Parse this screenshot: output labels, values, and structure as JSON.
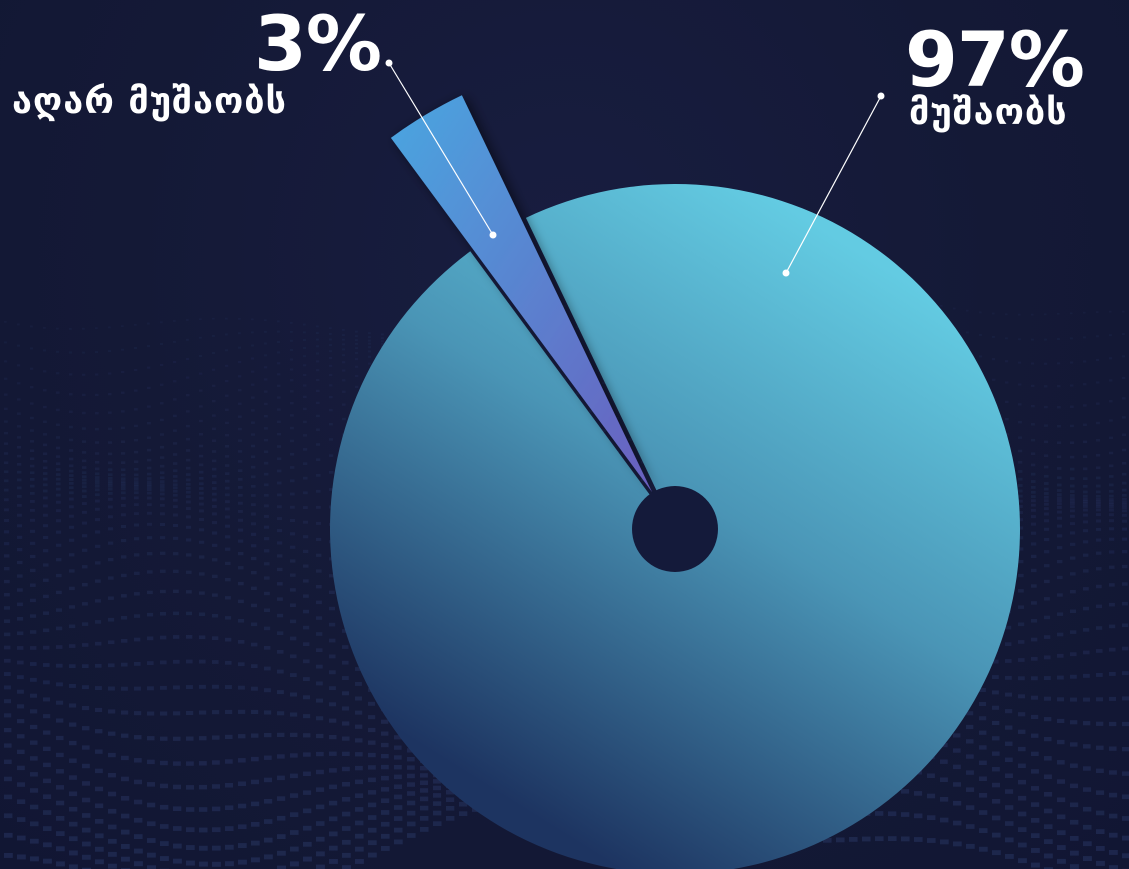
{
  "chart_data": {
    "type": "pie",
    "slices": [
      {
        "label": "მუშაობს",
        "value": 97,
        "value_text": "97%",
        "color": "#5fc7de"
      },
      {
        "label": "აღარ მუშაობს",
        "value": 3,
        "value_text": "3%",
        "color": "#5a7fd0"
      }
    ],
    "donut_hole": true,
    "background_color": "#151a38"
  }
}
